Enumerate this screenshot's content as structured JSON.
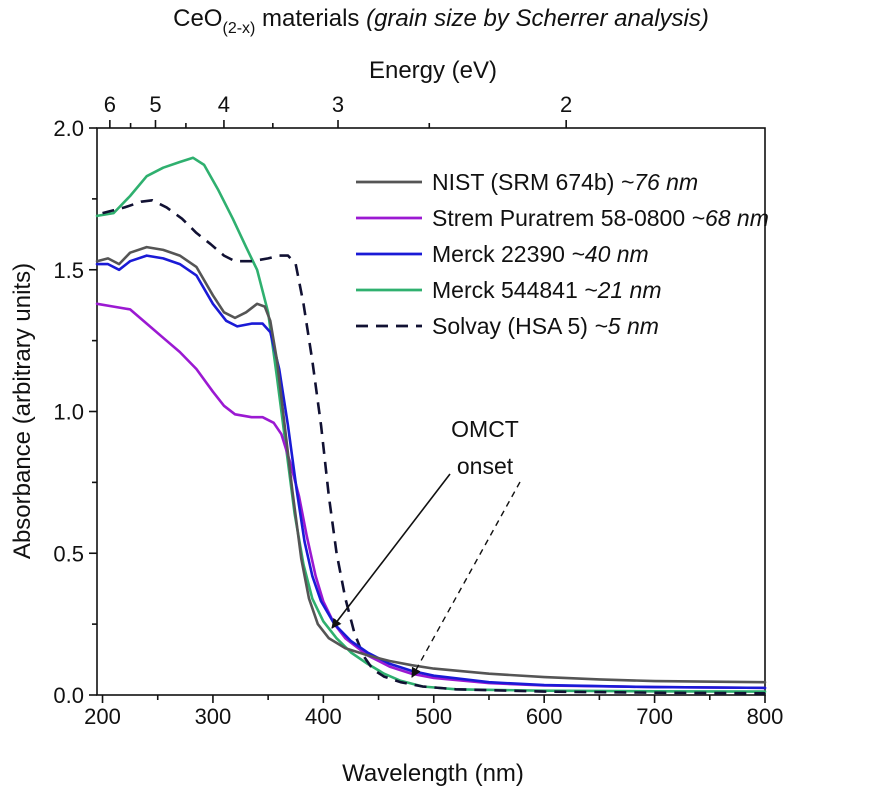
{
  "chart_data": {
    "type": "line",
    "title": {
      "main": "CeO",
      "subscript": "(2-x)",
      "rest": " materials ",
      "italic": "(grain size by Scherrer analysis)"
    },
    "xlabel": "Wavelength (nm)",
    "ylabel": "Absorbance (arbitrary units)",
    "top_axis_label": "Energy (eV)",
    "xlim": [
      195,
      800
    ],
    "ylim": [
      0.0,
      2.0
    ],
    "x_ticks": [
      {
        "value": 200,
        "label": "200"
      },
      {
        "value": 300,
        "label": "300"
      },
      {
        "value": 400,
        "label": "400"
      },
      {
        "value": 500,
        "label": "500"
      },
      {
        "value": 600,
        "label": "600"
      },
      {
        "value": 700,
        "label": "700"
      },
      {
        "value": 800,
        "label": "800"
      }
    ],
    "y_ticks": [
      {
        "value": 0.0,
        "label": "0.0"
      },
      {
        "value": 0.5,
        "label": "0.5"
      },
      {
        "value": 1.0,
        "label": "1.0"
      },
      {
        "value": 1.5,
        "label": "1.5"
      },
      {
        "value": 2.0,
        "label": "2.0"
      }
    ],
    "top_ticks": [
      {
        "value": 6,
        "label": "6"
      },
      {
        "value": 5,
        "label": "5"
      },
      {
        "value": 4,
        "label": "4"
      },
      {
        "value": 3,
        "label": "3"
      },
      {
        "value": 2,
        "label": "2"
      }
    ],
    "legend_position": "top-right",
    "series": [
      {
        "name": "NIST (SRM 674b)",
        "name_suffix": "~76 nm",
        "color": "#555555",
        "dash": "solid",
        "points": [
          [
            195,
            1.53
          ],
          [
            205,
            1.54
          ],
          [
            215,
            1.52
          ],
          [
            225,
            1.56
          ],
          [
            240,
            1.58
          ],
          [
            255,
            1.57
          ],
          [
            270,
            1.55
          ],
          [
            285,
            1.51
          ],
          [
            300,
            1.41
          ],
          [
            310,
            1.35
          ],
          [
            320,
            1.33
          ],
          [
            330,
            1.35
          ],
          [
            340,
            1.38
          ],
          [
            347,
            1.37
          ],
          [
            352,
            1.32
          ],
          [
            358,
            1.18
          ],
          [
            365,
            0.95
          ],
          [
            372,
            0.72
          ],
          [
            380,
            0.48
          ],
          [
            387,
            0.34
          ],
          [
            395,
            0.25
          ],
          [
            405,
            0.2
          ],
          [
            420,
            0.165
          ],
          [
            440,
            0.14
          ],
          [
            460,
            0.12
          ],
          [
            480,
            0.105
          ],
          [
            500,
            0.093
          ],
          [
            550,
            0.075
          ],
          [
            600,
            0.063
          ],
          [
            650,
            0.055
          ],
          [
            700,
            0.049
          ],
          [
            800,
            0.045
          ]
        ]
      },
      {
        "name": "Strem Puratrem 58-0800",
        "name_suffix": "~68 nm",
        "color": "#9b19d2",
        "dash": "solid",
        "points": [
          [
            195,
            1.38
          ],
          [
            210,
            1.37
          ],
          [
            225,
            1.36
          ],
          [
            240,
            1.31
          ],
          [
            255,
            1.26
          ],
          [
            270,
            1.21
          ],
          [
            285,
            1.15
          ],
          [
            300,
            1.07
          ],
          [
            310,
            1.02
          ],
          [
            320,
            0.99
          ],
          [
            335,
            0.98
          ],
          [
            345,
            0.98
          ],
          [
            355,
            0.96
          ],
          [
            362,
            0.92
          ],
          [
            370,
            0.82
          ],
          [
            378,
            0.7
          ],
          [
            385,
            0.56
          ],
          [
            393,
            0.42
          ],
          [
            400,
            0.33
          ],
          [
            410,
            0.25
          ],
          [
            420,
            0.2
          ],
          [
            440,
            0.14
          ],
          [
            460,
            0.1
          ],
          [
            480,
            0.075
          ],
          [
            500,
            0.06
          ],
          [
            550,
            0.042
          ],
          [
            600,
            0.034
          ],
          [
            700,
            0.028
          ],
          [
            800,
            0.025
          ]
        ]
      },
      {
        "name": "Merck 22390",
        "name_suffix": "~40 nm",
        "color": "#1a1ad6",
        "dash": "solid",
        "points": [
          [
            195,
            1.52
          ],
          [
            205,
            1.52
          ],
          [
            215,
            1.5
          ],
          [
            225,
            1.53
          ],
          [
            240,
            1.55
          ],
          [
            255,
            1.54
          ],
          [
            270,
            1.52
          ],
          [
            285,
            1.48
          ],
          [
            300,
            1.38
          ],
          [
            312,
            1.32
          ],
          [
            322,
            1.3
          ],
          [
            335,
            1.31
          ],
          [
            345,
            1.31
          ],
          [
            352,
            1.28
          ],
          [
            360,
            1.15
          ],
          [
            368,
            0.95
          ],
          [
            376,
            0.72
          ],
          [
            383,
            0.54
          ],
          [
            390,
            0.42
          ],
          [
            398,
            0.33
          ],
          [
            410,
            0.25
          ],
          [
            425,
            0.19
          ],
          [
            440,
            0.15
          ],
          [
            460,
            0.11
          ],
          [
            480,
            0.085
          ],
          [
            500,
            0.068
          ],
          [
            550,
            0.045
          ],
          [
            600,
            0.035
          ],
          [
            700,
            0.028
          ],
          [
            800,
            0.025
          ]
        ]
      },
      {
        "name": "Merck 544841",
        "name_suffix": "~21 nm",
        "color": "#2fb06f",
        "dash": "solid",
        "points": [
          [
            195,
            1.69
          ],
          [
            210,
            1.7
          ],
          [
            225,
            1.76
          ],
          [
            240,
            1.83
          ],
          [
            255,
            1.86
          ],
          [
            270,
            1.88
          ],
          [
            282,
            1.895
          ],
          [
            292,
            1.87
          ],
          [
            305,
            1.78
          ],
          [
            318,
            1.68
          ],
          [
            330,
            1.58
          ],
          [
            340,
            1.5
          ],
          [
            350,
            1.35
          ],
          [
            358,
            1.12
          ],
          [
            366,
            0.88
          ],
          [
            374,
            0.64
          ],
          [
            382,
            0.46
          ],
          [
            390,
            0.34
          ],
          [
            400,
            0.26
          ],
          [
            412,
            0.2
          ],
          [
            425,
            0.15
          ],
          [
            440,
            0.11
          ],
          [
            455,
            0.075
          ],
          [
            470,
            0.05
          ],
          [
            490,
            0.03
          ],
          [
            520,
            0.02
          ],
          [
            600,
            0.015
          ],
          [
            700,
            0.013
          ],
          [
            800,
            0.012
          ]
        ]
      },
      {
        "name": "Solvay (HSA 5)",
        "name_suffix": "~5 nm",
        "color": "#111133",
        "dash": "dashed",
        "points": [
          [
            200,
            1.7
          ],
          [
            220,
            1.72
          ],
          [
            235,
            1.74
          ],
          [
            245,
            1.745
          ],
          [
            258,
            1.72
          ],
          [
            272,
            1.68
          ],
          [
            285,
            1.63
          ],
          [
            298,
            1.59
          ],
          [
            310,
            1.55
          ],
          [
            320,
            1.53
          ],
          [
            335,
            1.53
          ],
          [
            350,
            1.54
          ],
          [
            360,
            1.55
          ],
          [
            368,
            1.55
          ],
          [
            375,
            1.52
          ],
          [
            382,
            1.38
          ],
          [
            390,
            1.18
          ],
          [
            398,
            0.95
          ],
          [
            405,
            0.7
          ],
          [
            412,
            0.5
          ],
          [
            420,
            0.34
          ],
          [
            428,
            0.22
          ],
          [
            436,
            0.14
          ],
          [
            445,
            0.09
          ],
          [
            455,
            0.065
          ],
          [
            470,
            0.045
          ],
          [
            490,
            0.03
          ],
          [
            520,
            0.02
          ],
          [
            600,
            0.012
          ],
          [
            700,
            0.008
          ],
          [
            800,
            0.006
          ]
        ]
      }
    ],
    "annotations": [
      {
        "label_line1": "OMCT",
        "label_line2": "onset"
      }
    ]
  }
}
